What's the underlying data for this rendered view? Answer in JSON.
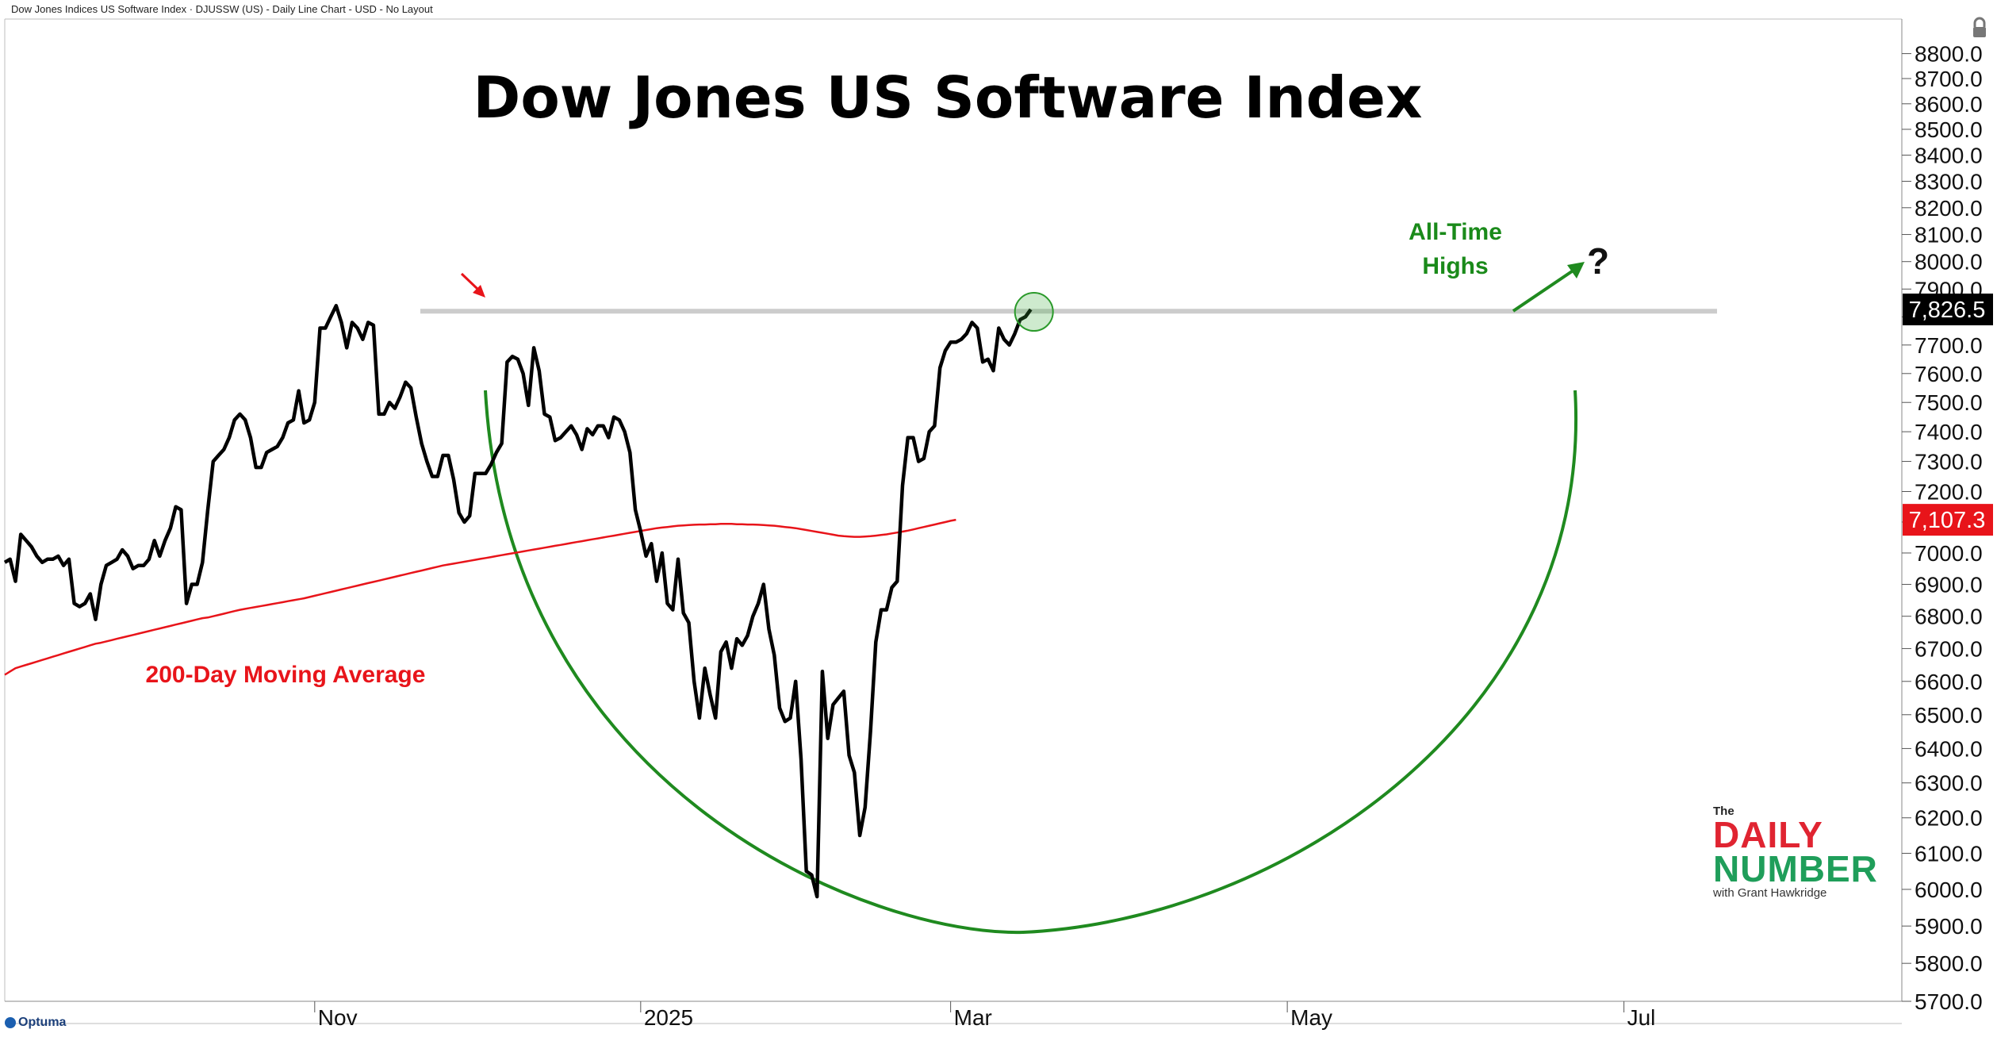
{
  "header": {
    "text": "Dow Jones Indices US Software Index  · DJUSSW (US) - Daily Line Chart - USD - No Layout"
  },
  "brand": {
    "platform": "Optuma",
    "logo_the": "The",
    "logo_daily": "DAILY",
    "logo_number": "NUMBER",
    "logo_sub": "with Grant Hawkridge"
  },
  "colors": {
    "price": "#000000",
    "ma": "#e8141a",
    "arc": "#1f8a1f",
    "ath_line": "#c9c9c9",
    "last_label_bg": "#000000",
    "ma_label_bg": "#e8141a"
  },
  "icons": [
    "lock-icon",
    "arrow-right-icon"
  ],
  "chart_data": {
    "type": "line",
    "title": "Dow Jones US Software Index",
    "xlabel": "",
    "ylabel": "",
    "x_ticks": [
      "Nov",
      "2025",
      "Mar",
      "May",
      "Jul"
    ],
    "x_tick_index": [
      58,
      119,
      177,
      240,
      303
    ],
    "x_range_index": [
      0,
      355
    ],
    "y_ticks": [
      "8800.0",
      "8700.0",
      "8600.0",
      "8500.0",
      "8400.0",
      "8300.0",
      "8200.0",
      "8100.0",
      "8000.0",
      "7900.0",
      "7800.0",
      "7700.0",
      "7600.0",
      "7500.0",
      "7400.0",
      "7300.0",
      "7200.0",
      "7100.0",
      "7000.0",
      "6900.0",
      "6800.0",
      "6700.0",
      "6600.0",
      "6500.0",
      "6400.0",
      "6300.0",
      "6200.0",
      "6100.0",
      "6000.0",
      "5900.0",
      "5800.0",
      "5700.0"
    ],
    "y_scale": "log",
    "ylim": [
      5700,
      8850
    ],
    "grid": false,
    "last_value_label": "7,826.5",
    "ma_value_label": "7,107.3",
    "series": [
      {
        "name": "DJUSSW",
        "values": [
          6970,
          6980,
          6910,
          7060,
          7040,
          7020,
          6990,
          6970,
          6980,
          6980,
          6990,
          6960,
          6980,
          6840,
          6830,
          6840,
          6870,
          6790,
          6900,
          6960,
          6970,
          6980,
          7010,
          6990,
          6950,
          6960,
          6960,
          6980,
          7040,
          6990,
          7040,
          7080,
          7150,
          7140,
          6840,
          6900,
          6900,
          6970,
          7140,
          7300,
          7320,
          7340,
          7380,
          7440,
          7460,
          7440,
          7380,
          7280,
          7280,
          7330,
          7340,
          7350,
          7380,
          7430,
          7440,
          7540,
          7430,
          7440,
          7500,
          7760,
          7760,
          7800,
          7840,
          7780,
          7690,
          7780,
          7760,
          7720,
          7780,
          7770,
          7460,
          7460,
          7500,
          7480,
          7520,
          7570,
          7550,
          7450,
          7360,
          7300,
          7250,
          7250,
          7320,
          7320,
          7240,
          7130,
          7100,
          7120,
          7260,
          7260,
          7260,
          7290,
          7330,
          7360,
          7640,
          7660,
          7650,
          7600,
          7490,
          7690,
          7610,
          7460,
          7450,
          7370,
          7380,
          7400,
          7420,
          7390,
          7340,
          7410,
          7390,
          7420,
          7420,
          7380,
          7450,
          7440,
          7400,
          7330,
          7140,
          7070,
          6990,
          7030,
          6910,
          7000,
          6840,
          6820,
          6980,
          6810,
          6780,
          6600,
          6490,
          6640,
          6560,
          6490,
          6690,
          6720,
          6640,
          6730,
          6710,
          6740,
          6800,
          6840,
          6900,
          6760,
          6680,
          6520,
          6480,
          6490,
          6600,
          6370,
          6050,
          6040,
          5980,
          6630,
          6430,
          6530,
          6550,
          6570,
          6380,
          6330,
          6150,
          6230,
          6450,
          6720,
          6820,
          6820,
          6890,
          6910,
          7220,
          7380,
          7380,
          7300,
          7310,
          7400,
          7420,
          7620,
          7680,
          7710,
          7710,
          7720,
          7740,
          7780,
          7760,
          7640,
          7650,
          7610,
          7760,
          7720,
          7700,
          7740,
          7790,
          7800,
          7826.5
        ]
      },
      {
        "name": "200-Day Moving Average",
        "values": [
          6620,
          6630,
          6640,
          6645,
          6650,
          6655,
          6660,
          6665,
          6670,
          6675,
          6680,
          6685,
          6690,
          6695,
          6700,
          6705,
          6710,
          6715,
          6718,
          6722,
          6726,
          6730,
          6734,
          6738,
          6742,
          6746,
          6750,
          6754,
          6758,
          6762,
          6766,
          6770,
          6774,
          6778,
          6782,
          6786,
          6790,
          6794,
          6796,
          6800,
          6804,
          6808,
          6812,
          6816,
          6820,
          6823,
          6826,
          6829,
          6832,
          6835,
          6838,
          6841,
          6844,
          6847,
          6850,
          6853,
          6856,
          6860,
          6864,
          6868,
          6872,
          6876,
          6880,
          6884,
          6888,
          6892,
          6896,
          6900,
          6904,
          6908,
          6912,
          6916,
          6920,
          6924,
          6928,
          6932,
          6936,
          6940,
          6944,
          6948,
          6952,
          6956,
          6960,
          6963,
          6966,
          6969,
          6972,
          6975,
          6978,
          6981,
          6984,
          6987,
          6990,
          6993,
          6996,
          6999,
          7002,
          7005,
          7008,
          7011,
          7014,
          7017,
          7020,
          7023,
          7026,
          7029,
          7032,
          7035,
          7038,
          7041,
          7044,
          7047,
          7050,
          7053,
          7056,
          7059,
          7062,
          7065,
          7068,
          7071,
          7074,
          7077,
          7080,
          7082,
          7084,
          7086,
          7088,
          7089,
          7090,
          7091,
          7092,
          7092,
          7093,
          7093,
          7094,
          7094,
          7094,
          7093,
          7093,
          7092,
          7092,
          7091,
          7090,
          7089,
          7088,
          7086,
          7084,
          7082,
          7080,
          7077,
          7074,
          7071,
          7068,
          7065,
          7062,
          7059,
          7056,
          7054,
          7053,
          7052,
          7052,
          7053,
          7054,
          7056,
          7058,
          7060,
          7063,
          7066,
          7069,
          7072,
          7076,
          7080,
          7084,
          7088,
          7092,
          7096,
          7100,
          7104,
          7107.3
        ]
      }
    ],
    "ath_level": 7820,
    "annotations": [
      "All-Time Highs",
      "?",
      "200-Day Moving Average"
    ]
  }
}
